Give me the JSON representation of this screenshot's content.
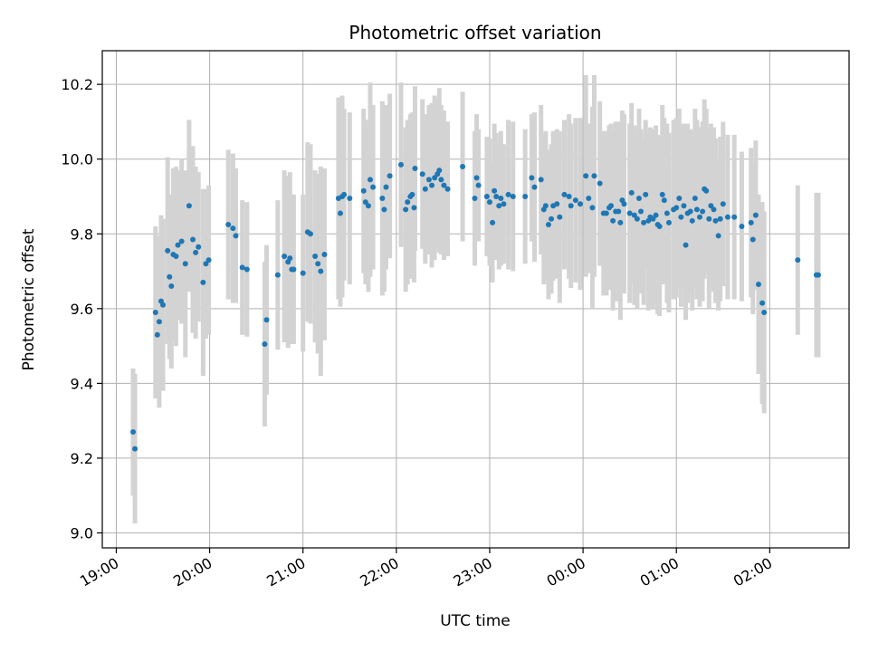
{
  "chart_data": {
    "type": "scatter",
    "title": "Photometric offset variation",
    "xlabel": "UTC time",
    "ylabel": "Photometric offset",
    "x_ticks": [
      "19:00",
      "20:00",
      "21:00",
      "22:00",
      "23:00",
      "00:00",
      "01:00",
      "02:00"
    ],
    "y_ticks": [
      "9.0",
      "9.2",
      "9.4",
      "9.6",
      "9.8",
      "10.0",
      "10.2"
    ],
    "xlim_hours": [
      18.85,
      26.85
    ],
    "ylim": [
      8.96,
      10.29
    ],
    "grid": true,
    "colors": {
      "marker": "#1f77b4",
      "errorbar": "#d3d3d3",
      "grid": "#b0b0b0"
    },
    "series": [
      {
        "points": [
          [
            19.18,
            9.27,
            0.17
          ],
          [
            19.2,
            9.225,
            0.2
          ],
          [
            19.42,
            9.59,
            0.23
          ],
          [
            19.44,
            9.53,
            0.17
          ],
          [
            19.46,
            9.565,
            0.23
          ],
          [
            19.48,
            9.62,
            0.23
          ],
          [
            19.5,
            9.61,
            0.23
          ],
          [
            19.55,
            9.755,
            0.25
          ],
          [
            19.57,
            9.685,
            0.22
          ],
          [
            19.59,
            9.66,
            0.22
          ],
          [
            19.61,
            9.745,
            0.23
          ],
          [
            19.64,
            9.74,
            0.24
          ],
          [
            19.66,
            9.77,
            0.2
          ],
          [
            19.7,
            9.78,
            0.22
          ],
          [
            19.74,
            9.72,
            0.25
          ],
          [
            19.78,
            9.875,
            0.23
          ],
          [
            19.82,
            9.785,
            0.25
          ],
          [
            19.85,
            9.75,
            0.23
          ],
          [
            19.88,
            9.765,
            0.2
          ],
          [
            19.93,
            9.67,
            0.25
          ],
          [
            19.96,
            9.72,
            0.2
          ],
          [
            19.99,
            9.73,
            0.2
          ],
          [
            20.2,
            9.825,
            0.2
          ],
          [
            20.25,
            9.815,
            0.2
          ],
          [
            20.28,
            9.795,
            0.18
          ],
          [
            20.35,
            9.71,
            0.18
          ],
          [
            20.4,
            9.705,
            0.18
          ],
          [
            20.59,
            9.505,
            0.22
          ],
          [
            20.61,
            9.57,
            0.2
          ],
          [
            20.73,
            9.69,
            0.2
          ],
          [
            20.8,
            9.74,
            0.23
          ],
          [
            20.84,
            9.725,
            0.23
          ],
          [
            20.86,
            9.735,
            0.23
          ],
          [
            20.88,
            9.705,
            0.2
          ],
          [
            20.9,
            9.705,
            0.2
          ],
          [
            21.0,
            9.695,
            0.21
          ],
          [
            21.05,
            9.805,
            0.24
          ],
          [
            21.08,
            9.8,
            0.24
          ],
          [
            21.13,
            9.74,
            0.23
          ],
          [
            21.16,
            9.72,
            0.24
          ],
          [
            21.19,
            9.7,
            0.28
          ],
          [
            21.23,
            9.745,
            0.23
          ],
          [
            21.38,
            9.895,
            0.27
          ],
          [
            21.4,
            9.855,
            0.25
          ],
          [
            21.42,
            9.9,
            0.27
          ],
          [
            21.44,
            9.905,
            0.23
          ],
          [
            21.5,
            9.895,
            0.23
          ],
          [
            21.65,
            9.915,
            0.22
          ],
          [
            21.67,
            9.885,
            0.22
          ],
          [
            21.7,
            9.875,
            0.23
          ],
          [
            21.72,
            9.945,
            0.26
          ],
          [
            21.75,
            9.925,
            0.22
          ],
          [
            21.85,
            9.895,
            0.26
          ],
          [
            21.87,
            9.865,
            0.22
          ],
          [
            21.89,
            9.925,
            0.22
          ],
          [
            21.93,
            9.955,
            0.22
          ],
          [
            22.05,
            9.985,
            0.22
          ],
          [
            22.1,
            9.865,
            0.22
          ],
          [
            22.12,
            9.885,
            0.22
          ],
          [
            22.15,
            9.9,
            0.22
          ],
          [
            22.17,
            9.905,
            0.22
          ],
          [
            22.19,
            9.87,
            0.2
          ],
          [
            22.2,
            9.975,
            0.22
          ],
          [
            22.28,
            9.96,
            0.2
          ],
          [
            22.31,
            9.92,
            0.2
          ],
          [
            22.35,
            9.945,
            0.2
          ],
          [
            22.38,
            9.93,
            0.22
          ],
          [
            22.41,
            9.95,
            0.22
          ],
          [
            22.44,
            9.96,
            0.2
          ],
          [
            22.46,
            9.97,
            0.22
          ],
          [
            22.48,
            9.945,
            0.2
          ],
          [
            22.51,
            9.93,
            0.2
          ],
          [
            22.55,
            9.92,
            0.18
          ],
          [
            22.71,
            9.98,
            0.2
          ],
          [
            22.84,
            9.895,
            0.18
          ],
          [
            22.86,
            9.95,
            0.17
          ],
          [
            22.88,
            9.93,
            0.15
          ],
          [
            22.97,
            9.9,
            0.16
          ],
          [
            23.0,
            9.885,
            0.17
          ],
          [
            23.03,
            9.83,
            0.16
          ],
          [
            23.05,
            9.915,
            0.18
          ],
          [
            23.07,
            9.9,
            0.17
          ],
          [
            23.1,
            9.875,
            0.17
          ],
          [
            23.12,
            9.895,
            0.18
          ],
          [
            23.15,
            9.88,
            0.16
          ],
          [
            23.2,
            9.905,
            0.2
          ],
          [
            23.25,
            9.9,
            0.2
          ],
          [
            23.38,
            9.9,
            0.18
          ],
          [
            23.45,
            9.95,
            0.17
          ],
          [
            23.48,
            9.925,
            0.2
          ],
          [
            23.55,
            9.945,
            0.2
          ],
          [
            23.58,
            9.865,
            0.2
          ],
          [
            23.6,
            9.875,
            0.2
          ],
          [
            23.63,
            9.825,
            0.2
          ],
          [
            23.66,
            9.84,
            0.2
          ],
          [
            23.68,
            9.875,
            0.2
          ],
          [
            23.72,
            9.88,
            0.2
          ],
          [
            23.75,
            9.845,
            0.23
          ],
          [
            23.8,
            9.905,
            0.2
          ],
          [
            23.85,
            9.9,
            0.22
          ],
          [
            23.87,
            9.875,
            0.22
          ],
          [
            23.92,
            9.89,
            0.22
          ],
          [
            23.97,
            9.88,
            0.23
          ],
          [
            24.03,
            9.955,
            0.27
          ],
          [
            24.06,
            9.895,
            0.2
          ],
          [
            24.1,
            9.87,
            0.27
          ],
          [
            24.12,
            9.955,
            0.27
          ],
          [
            24.18,
            9.935,
            0.22
          ],
          [
            24.22,
            9.855,
            0.22
          ],
          [
            24.25,
            9.855,
            0.22
          ],
          [
            24.28,
            9.87,
            0.22
          ],
          [
            24.3,
            9.875,
            0.22
          ],
          [
            24.32,
            9.835,
            0.24
          ],
          [
            24.35,
            9.86,
            0.24
          ],
          [
            24.38,
            9.86,
            0.24
          ],
          [
            24.4,
            9.83,
            0.26
          ],
          [
            24.42,
            9.89,
            0.24
          ],
          [
            24.44,
            9.88,
            0.24
          ],
          [
            24.5,
            9.855,
            0.24
          ],
          [
            24.52,
            9.91,
            0.24
          ],
          [
            24.55,
            9.85,
            0.24
          ],
          [
            24.58,
            9.84,
            0.24
          ],
          [
            24.6,
            9.895,
            0.24
          ],
          [
            24.62,
            9.86,
            0.22
          ],
          [
            24.65,
            9.83,
            0.22
          ],
          [
            24.67,
            9.905,
            0.2
          ],
          [
            24.7,
            9.835,
            0.24
          ],
          [
            24.72,
            9.845,
            0.24
          ],
          [
            24.75,
            9.84,
            0.24
          ],
          [
            24.78,
            9.85,
            0.24
          ],
          [
            24.8,
            9.825,
            0.24
          ],
          [
            24.82,
            9.82,
            0.24
          ],
          [
            24.85,
            9.905,
            0.24
          ],
          [
            24.87,
            9.89,
            0.22
          ],
          [
            24.9,
            9.855,
            0.24
          ],
          [
            24.92,
            9.83,
            0.24
          ],
          [
            24.97,
            9.865,
            0.24
          ],
          [
            25.0,
            9.87,
            0.24
          ],
          [
            25.03,
            9.895,
            0.24
          ],
          [
            25.05,
            9.845,
            0.24
          ],
          [
            25.08,
            9.875,
            0.22
          ],
          [
            25.1,
            9.77,
            0.2
          ],
          [
            25.12,
            9.855,
            0.24
          ],
          [
            25.15,
            9.86,
            0.22
          ],
          [
            25.17,
            9.835,
            0.24
          ],
          [
            25.2,
            9.895,
            0.24
          ],
          [
            25.22,
            9.865,
            0.24
          ],
          [
            25.25,
            9.845,
            0.24
          ],
          [
            25.28,
            9.86,
            0.24
          ],
          [
            25.3,
            9.92,
            0.24
          ],
          [
            25.32,
            9.915,
            0.22
          ],
          [
            25.35,
            9.84,
            0.24
          ],
          [
            25.37,
            9.875,
            0.22
          ],
          [
            25.4,
            9.865,
            0.22
          ],
          [
            25.42,
            9.835,
            0.22
          ],
          [
            25.45,
            9.795,
            0.2
          ],
          [
            25.47,
            9.84,
            0.22
          ],
          [
            25.5,
            9.88,
            0.22
          ],
          [
            25.55,
            9.845,
            0.22
          ],
          [
            25.62,
            9.845,
            0.22
          ],
          [
            25.7,
            9.82,
            0.2
          ],
          [
            25.8,
            9.83,
            0.2
          ],
          [
            25.82,
            9.785,
            0.2
          ],
          [
            25.85,
            9.85,
            0.2
          ],
          [
            25.88,
            9.665,
            0.24
          ],
          [
            25.92,
            9.615,
            0.27
          ],
          [
            25.94,
            9.59,
            0.27
          ],
          [
            26.3,
            9.73,
            0.2
          ],
          [
            26.5,
            9.69,
            0.22
          ],
          [
            26.52,
            9.69,
            0.22
          ]
        ]
      }
    ]
  }
}
